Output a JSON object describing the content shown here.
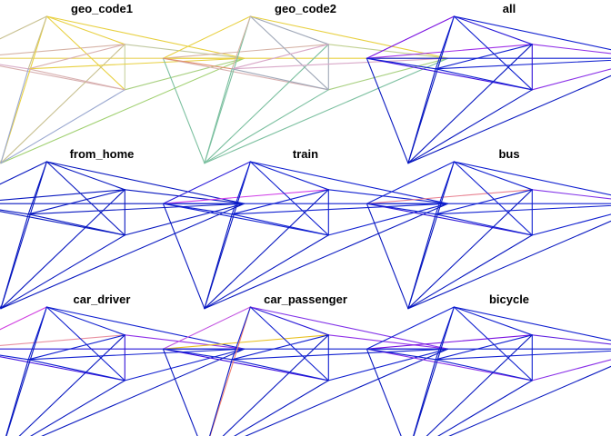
{
  "chart_data": {
    "type": "network-map-facets",
    "layout": "3x3 grid of small-multiple panels",
    "nodes": [
      {
        "id": "A",
        "x": -1.55,
        "y": 0.4
      },
      {
        "id": "B",
        "x": -0.6,
        "y": 1.0
      },
      {
        "id": "C",
        "x": 0.25,
        "y": 0.6
      },
      {
        "id": "D",
        "x": 1.55,
        "y": 0.4
      },
      {
        "id": "E",
        "x": 0.25,
        "y": -0.05
      },
      {
        "id": "F",
        "x": -1.1,
        "y": -1.1
      },
      {
        "id": "G",
        "x": -0.8,
        "y": 0.25
      }
    ],
    "edges": [
      [
        "A",
        "B"
      ],
      [
        "A",
        "C"
      ],
      [
        "A",
        "D"
      ],
      [
        "A",
        "E"
      ],
      [
        "A",
        "F"
      ],
      [
        "A",
        "G"
      ],
      [
        "B",
        "C"
      ],
      [
        "B",
        "D"
      ],
      [
        "B",
        "E"
      ],
      [
        "B",
        "F"
      ],
      [
        "B",
        "G"
      ],
      [
        "C",
        "D"
      ],
      [
        "C",
        "E"
      ],
      [
        "C",
        "F"
      ],
      [
        "C",
        "G"
      ],
      [
        "D",
        "E"
      ],
      [
        "D",
        "F"
      ],
      [
        "D",
        "G"
      ],
      [
        "E",
        "F"
      ],
      [
        "E",
        "G"
      ],
      [
        "F",
        "G"
      ]
    ],
    "panels": [
      {
        "title": "geo_code1",
        "palette": "categorical",
        "edge_colors": [
          "#c8c090",
          "#d6b3a6",
          "#e8d25a",
          "#d8b0b0",
          "#c8c090",
          "#d9aec8",
          "#e8d040",
          "#e8d040",
          "#e8d040",
          "#e8d040",
          "#c8c090",
          "#c0c8a0",
          "#c8d2a0",
          "#c8c090",
          "#d8b0b0",
          "#a8d080",
          "#a0d070",
          "#e8d040",
          "#9aa8d0",
          "#d8b0b0",
          "#9aa8d0"
        ]
      },
      {
        "title": "geo_code2",
        "palette": "categorical",
        "edge_colors": [
          "#e8d040",
          "#d6b3a6",
          "#e8d040",
          "#d8b0b0",
          "#7cc0a0",
          "#e09070",
          "#a0a8b8",
          "#e8d040",
          "#a0a8b8",
          "#7cc0a0",
          "#d6b3a6",
          "#c0d090",
          "#a0a8b8",
          "#7cc0a0",
          "#d8a8c8",
          "#a8d080",
          "#7cc0a0",
          "#d8a8c8",
          "#7cc0a0",
          "#a0a8b8",
          "#7cc0a0"
        ]
      },
      {
        "title": "all",
        "palette": "sequential",
        "edge_colors": [
          "#7a10e0",
          "#a030e8",
          "#1020d0",
          "#4010e0",
          "#0818c0",
          "#1020d0",
          "#2818d8",
          "#1020d0",
          "#1020d0",
          "#0818c0",
          "#1020d0",
          "#9030e8",
          "#3010d8",
          "#0818c0",
          "#1020d0",
          "#8a30e8",
          "#0818c0",
          "#1020d0",
          "#0818c0",
          "#1020d0",
          "#0818c0"
        ]
      },
      {
        "title": "from_home",
        "palette": "sequential",
        "edge_colors": [
          "#0818c0",
          "#0818c0",
          "#0818c0",
          "#0818c0",
          "#0818c0",
          "#0818c0",
          "#0818c0",
          "#0818c0",
          "#0818c0",
          "#0818c0",
          "#0818c0",
          "#0818c0",
          "#0818c0",
          "#0818c0",
          "#0818c0",
          "#0818c0",
          "#0818c0",
          "#0818c0",
          "#0818c0",
          "#0818c0",
          "#0818c0"
        ]
      },
      {
        "title": "train",
        "palette": "sequential",
        "edge_colors": [
          "#2818d8",
          "#d040e8",
          "#1020d0",
          "#1020d0",
          "#0818c0",
          "#1020d0",
          "#1020d0",
          "#1020d0",
          "#1020d0",
          "#0818c0",
          "#1020d0",
          "#1020d0",
          "#1020d0",
          "#0818c0",
          "#1020d0",
          "#1020d0",
          "#0818c0",
          "#1020d0",
          "#0818c0",
          "#1020d0",
          "#0818c0"
        ]
      },
      {
        "title": "bus",
        "palette": "sequential",
        "edge_colors": [
          "#1020d0",
          "#e88090",
          "#1020d0",
          "#3018d8",
          "#0818c0",
          "#1020d0",
          "#1020d0",
          "#1020d0",
          "#1020d0",
          "#0818c0",
          "#1020d0",
          "#8030e8",
          "#1020d0",
          "#0818c0",
          "#1020d0",
          "#1020d0",
          "#0818c0",
          "#1020d0",
          "#0818c0",
          "#1020d0",
          "#0818c0"
        ]
      },
      {
        "title": "car_driver",
        "palette": "sequential",
        "edge_colors": [
          "#d040e0",
          "#e890a0",
          "#2818d8",
          "#4010e0",
          "#d040d8",
          "#1020d0",
          "#1020d0",
          "#1020d0",
          "#1020d0",
          "#0818c0",
          "#1020d0",
          "#9030e8",
          "#3010d8",
          "#0818c0",
          "#1020d0",
          "#1020d0",
          "#0818c0",
          "#1020d0",
          "#0818c0",
          "#1020d0",
          "#0818c0"
        ]
      },
      {
        "title": "car_passenger",
        "palette": "sequential",
        "edge_colors": [
          "#c050e0",
          "#e8c020",
          "#1020d0",
          "#4010e0",
          "#0818c0",
          "#1020d0",
          "#2818d8",
          "#8030e8",
          "#1020d0",
          "#f08070",
          "#1020d0",
          "#9030e8",
          "#1020d0",
          "#0818c0",
          "#1020d0",
          "#1020d0",
          "#0818c0",
          "#1020d0",
          "#0818c0",
          "#1020d0",
          "#0818c0"
        ]
      },
      {
        "title": "bicycle",
        "palette": "sequential",
        "edge_colors": [
          "#1020d0",
          "#7a10e0",
          "#1020d0",
          "#8a30e8",
          "#0818c0",
          "#1020d0",
          "#1020d0",
          "#1020d0",
          "#1020d0",
          "#0818c0",
          "#1020d0",
          "#6020e0",
          "#1020d0",
          "#0818c0",
          "#1020d0",
          "#8a30e8",
          "#0818c0",
          "#1020d0",
          "#0818c0",
          "#1020d0",
          "#0818c0"
        ]
      }
    ]
  }
}
